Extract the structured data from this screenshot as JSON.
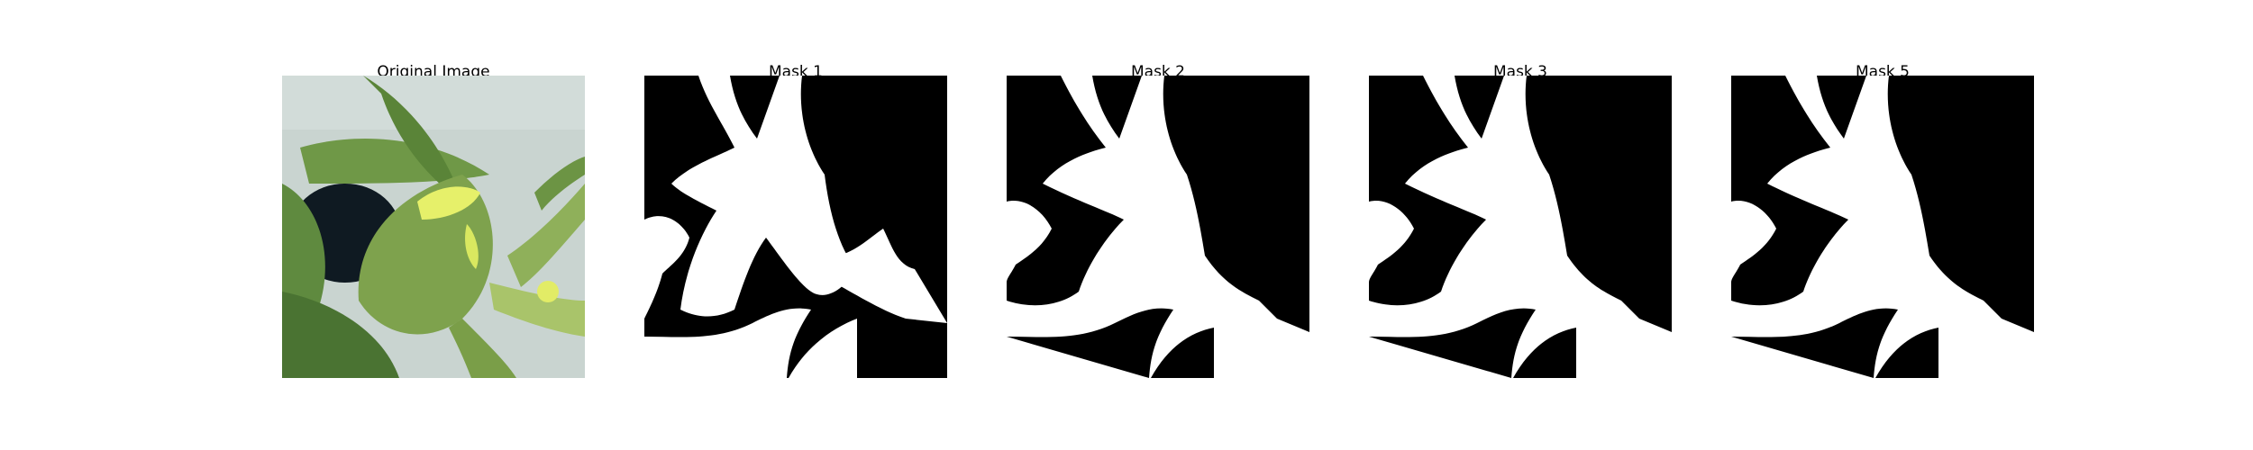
{
  "figure": {
    "panels": [
      {
        "title": "Original Image",
        "kind": "photo",
        "icon": "leaf-photo"
      },
      {
        "title": "Mask 1",
        "kind": "mask",
        "icon": "mask-image"
      },
      {
        "title": "Mask 2",
        "kind": "mask",
        "icon": "mask-image"
      },
      {
        "title": "Mask 3",
        "kind": "mask",
        "icon": "mask-image"
      },
      {
        "title": "Mask 5",
        "kind": "mask",
        "icon": "mask-image"
      }
    ],
    "colors": {
      "background": "#ffffff",
      "mask_foreground": "#ffffff",
      "mask_background": "#000000",
      "leaf_dark": "#4f7a36",
      "leaf_light": "#a9c46a",
      "sky": "#c9d4d0",
      "highlight": "#e6f06a"
    }
  }
}
